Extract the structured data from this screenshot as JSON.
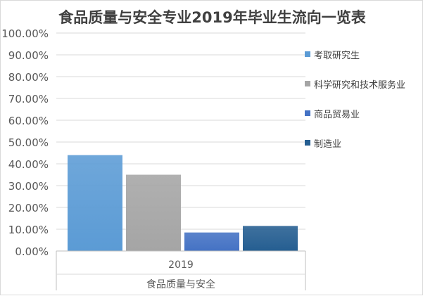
{
  "chart_data": {
    "type": "bar",
    "title": "食品质量与安全专业2019年毕业生流向一览表",
    "categories": [
      "2019"
    ],
    "category_group_label": "食品质量与安全",
    "series": [
      {
        "name": "考取研究生",
        "values": [
          44.0
        ],
        "color": "#5b9bd5"
      },
      {
        "name": "科学研究和技术服务业",
        "values": [
          35.0
        ],
        "color": "#a5a5a5"
      },
      {
        "name": "商品贸易业",
        "values": [
          8.5
        ],
        "color": "#4472c4"
      },
      {
        "name": "制造业",
        "values": [
          11.5
        ],
        "color": "#255e91"
      }
    ],
    "ylim": [
      0,
      100
    ],
    "yticks": [
      "0.00%",
      "10.00%",
      "20.00%",
      "30.00%",
      "40.00%",
      "50.00%",
      "60.00%",
      "70.00%",
      "80.00%",
      "90.00%",
      "100.00%"
    ],
    "grid": true,
    "legend_position": "right"
  }
}
